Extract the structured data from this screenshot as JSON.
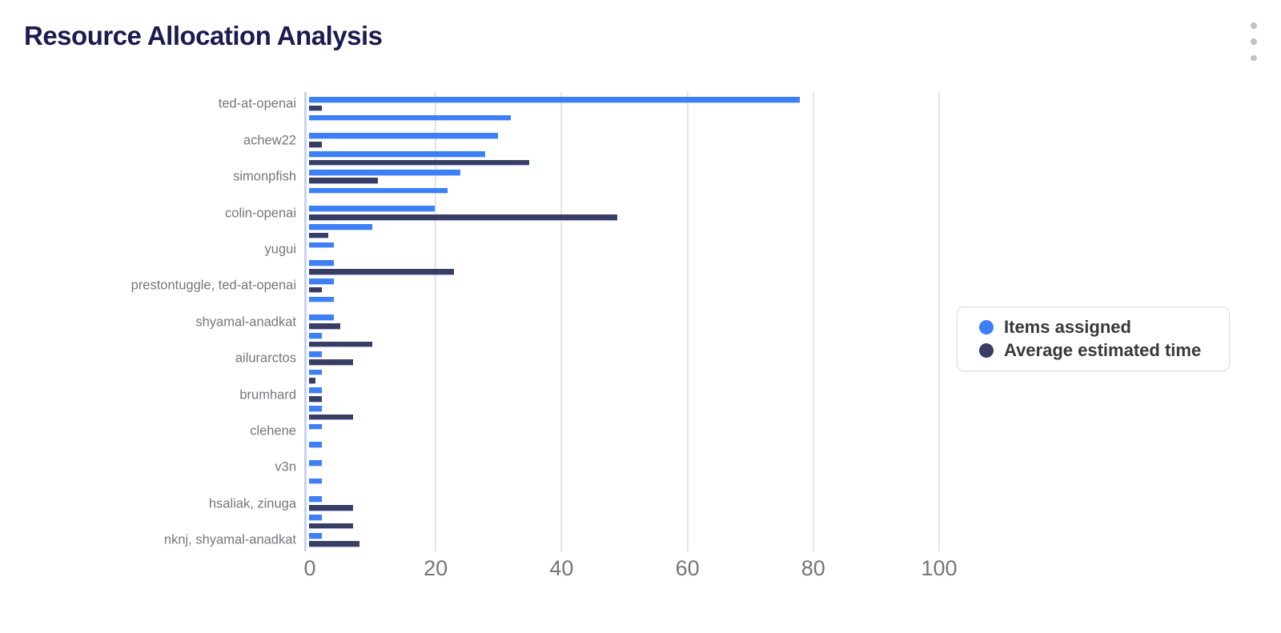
{
  "header": {
    "title": "Resource Allocation Analysis"
  },
  "menu": {
    "icon": "kebab-vertical-icon"
  },
  "colors": {
    "title_text": "#1b1b4f",
    "axis_label_text": "#76767c",
    "gridline": "#e4e4e8",
    "y_axis_line": "#c9d3f0",
    "series_blue": "#3c7ff6",
    "series_navy": "#383e63",
    "legend_border": "#dcdce0"
  },
  "chart_data": {
    "type": "bar",
    "orientation": "horizontal",
    "title": "Resource Allocation Analysis",
    "xlabel": "",
    "ylabel": "",
    "xlim": [
      0,
      100
    ],
    "x_ticks": [
      0,
      20,
      40,
      60,
      80,
      100
    ],
    "grid": true,
    "legend_position": "right-middle",
    "note_axis_labels": "only every other category row shows a label",
    "categories": [
      "ted-at-openai",
      "",
      "achew22",
      "",
      "simonpfish",
      "",
      "colin-openai",
      "",
      "yugui",
      "",
      "prestontuggle, ted-at-openai",
      "",
      "shyamal-anadkat",
      "",
      "ailurarctos",
      "",
      "brumhard",
      "",
      "clehene",
      "",
      "v3n",
      "",
      "hsaliak, zinuga",
      "",
      "nknj, shyamal-anadkat"
    ],
    "series": [
      {
        "name": "Items assigned",
        "color": "#3c7ff6",
        "values": [
          78,
          32,
          30,
          28,
          24,
          22,
          20,
          10,
          4,
          4,
          4,
          4,
          4,
          2,
          2,
          2,
          2,
          2,
          2,
          2,
          2,
          2,
          2,
          2,
          2
        ]
      },
      {
        "name": "Average estimated time",
        "color": "#383e63",
        "values": [
          2,
          0,
          2,
          35,
          11,
          0,
          49,
          3,
          0,
          23,
          2,
          0,
          5,
          10,
          7,
          1,
          2,
          7,
          0,
          0,
          0,
          0,
          7,
          7,
          8
        ]
      }
    ]
  }
}
